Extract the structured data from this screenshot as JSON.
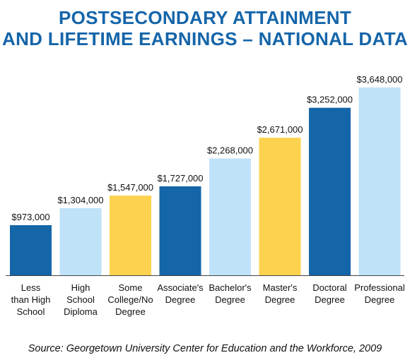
{
  "title_line1": "POSTSECONDARY ATTAINMENT",
  "title_line2": "AND LIFETIME EARNINGS – NATIONAL DATA",
  "source": "Source: Georgetown University Center for Education and the Workforce, 2009",
  "chart_data": {
    "type": "bar",
    "title": "POSTSECONDARY ATTAINMENT AND LIFETIME EARNINGS – NATIONAL DATA",
    "xlabel": "",
    "ylabel": "",
    "grid": false,
    "categories": [
      [
        "Less",
        "than High",
        "School"
      ],
      [
        "High",
        "School",
        "Diploma"
      ],
      [
        "Some",
        "College/No",
        "Degree"
      ],
      [
        "Associate's",
        "Degree"
      ],
      [
        "Bachelor's",
        "Degree"
      ],
      [
        "Master's",
        "Degree"
      ],
      [
        "Doctoral",
        "Degree"
      ],
      [
        "Professional",
        "Degree"
      ]
    ],
    "values": [
      973000,
      1304000,
      1547000,
      1727000,
      2268000,
      2671000,
      3252000,
      3648000
    ],
    "value_labels": [
      "$973,000",
      "$1,304,000",
      "$1,547,000",
      "$1,727,000",
      "$2,268,000",
      "$2,671,000",
      "$3,252,000",
      "$3,648,000"
    ],
    "colors": [
      "#1565a9",
      "#bfe2f8",
      "#fdd24f",
      "#1565a9",
      "#bfe2f8",
      "#fdd24f",
      "#1565a9",
      "#bfe2f8"
    ],
    "ylim": [
      0,
      3700000
    ]
  }
}
